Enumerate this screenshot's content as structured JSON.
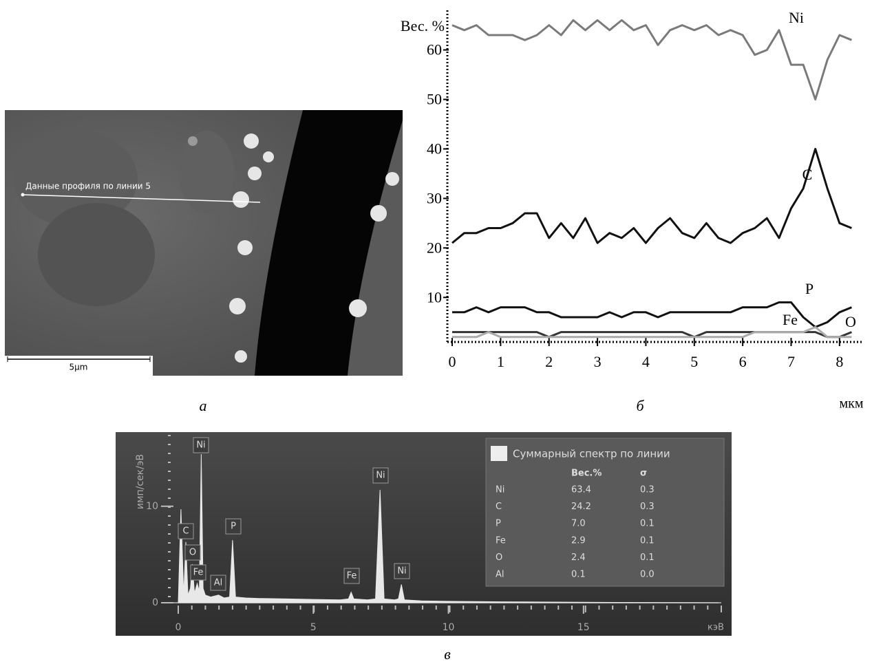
{
  "panel_labels": [
    "а",
    "б",
    "в"
  ],
  "image": {
    "line_label": "Данные профиля по линии 5",
    "scale_bar": "5µm"
  },
  "chart_data": [
    {
      "type": "line",
      "y_label": "Вес. %",
      "x_label": "мкм",
      "x": [
        0,
        0.25,
        0.5,
        0.75,
        1,
        1.25,
        1.5,
        1.75,
        2,
        2.25,
        2.5,
        2.75,
        3,
        3.25,
        3.5,
        3.75,
        4,
        4.25,
        4.5,
        4.75,
        5,
        5.25,
        5.5,
        5.75,
        6,
        6.25,
        6.5,
        6.75,
        7,
        7.25,
        7.5,
        7.75,
        8,
        8.25
      ],
      "xlim": [
        -0.1,
        8.5
      ],
      "ylim": [
        1,
        68
      ],
      "xticks": [
        0,
        1,
        2,
        3,
        4,
        5,
        6,
        7,
        8
      ],
      "yticks": [
        10,
        20,
        30,
        40,
        50,
        60
      ],
      "series": [
        {
          "name": "Ni",
          "color": "#7a7a7a",
          "values": [
            65,
            64,
            65,
            63,
            63,
            63,
            62,
            63,
            65,
            63,
            66,
            64,
            66,
            64,
            66,
            64,
            65,
            61,
            64,
            65,
            64,
            65,
            63,
            64,
            63,
            59,
            60,
            64,
            57,
            57,
            50,
            58,
            63,
            62
          ]
        },
        {
          "name": "C",
          "color": "#111111",
          "values": [
            21,
            23,
            23,
            24,
            24,
            25,
            27,
            27,
            22,
            25,
            22,
            26,
            21,
            23,
            22,
            24,
            21,
            24,
            26,
            23,
            22,
            25,
            22,
            21,
            23,
            24,
            26,
            22,
            28,
            32,
            40,
            32,
            25,
            24
          ]
        },
        {
          "name": "P",
          "color": "#111111",
          "values": [
            7,
            7,
            8,
            7,
            8,
            8,
            8,
            7,
            7,
            6,
            6,
            6,
            6,
            7,
            6,
            7,
            7,
            6,
            7,
            7,
            7,
            7,
            7,
            7,
            8,
            8,
            8,
            9,
            9,
            6,
            4,
            5,
            7,
            8
          ]
        },
        {
          "name": "Fe",
          "color": "#333333",
          "values": [
            3,
            3,
            3,
            3,
            3,
            3,
            3,
            3,
            2,
            3,
            3,
            3,
            3,
            3,
            3,
            3,
            3,
            3,
            3,
            3,
            2,
            3,
            3,
            3,
            3,
            3,
            3,
            3,
            3,
            3,
            3,
            2,
            2,
            3
          ]
        },
        {
          "name": "O",
          "color": "#aaaaaa",
          "values": [
            2,
            2,
            2,
            3,
            2,
            2,
            2,
            2,
            2,
            2,
            2,
            2,
            2,
            2,
            2,
            2,
            2,
            2,
            2,
            2,
            2,
            2,
            2,
            2,
            2,
            3,
            3,
            3,
            3,
            3,
            4,
            2,
            2,
            2
          ]
        }
      ]
    },
    {
      "type": "area",
      "y_label": "имп/сек/эВ",
      "x_label": "кэВ",
      "color": "#e8e8e8",
      "x": [
        0,
        0.1,
        0.2,
        0.28,
        0.36,
        0.45,
        0.52,
        0.6,
        0.7,
        0.78,
        0.85,
        0.92,
        1.0,
        1.2,
        1.49,
        1.7,
        1.9,
        2.01,
        2.12,
        2.5,
        3,
        4,
        5,
        6,
        6.3,
        6.4,
        6.5,
        7,
        7.3,
        7.47,
        7.62,
        8,
        8.15,
        8.26,
        8.37,
        9,
        10,
        12,
        15,
        20
      ],
      "values": [
        0,
        9.7,
        0.8,
        6.3,
        0.8,
        1.5,
        4,
        1,
        2,
        1.2,
        15.4,
        1.5,
        0.8,
        0.6,
        0.8,
        0.5,
        0.6,
        6.5,
        0.6,
        0.5,
        0.45,
        0.4,
        0.35,
        0.3,
        0.4,
        1.1,
        0.4,
        0.3,
        0.4,
        11.7,
        0.4,
        0.3,
        0.4,
        1.9,
        0.3,
        0.2,
        0.15,
        0.1,
        0.05,
        0
      ],
      "xlim": [
        0,
        20.1
      ],
      "ylim": [
        0,
        17.4
      ],
      "xticks": [
        0,
        5,
        10,
        15
      ],
      "yticks": [
        0,
        10
      ],
      "peak_labels": [
        "Ni",
        "C",
        "O",
        "Fe",
        "Al",
        "P",
        "Ni",
        "Fe",
        "Ni"
      ],
      "legend_table": {
        "title": "Суммарный спектр по линии",
        "columns": [
          "",
          "Вес.%",
          "σ"
        ],
        "rows": [
          [
            "Ni",
            "63.4",
            "0.3"
          ],
          [
            "C",
            "24.2",
            "0.3"
          ],
          [
            "P",
            "7.0",
            "0.1"
          ],
          [
            "Fe",
            "2.9",
            "0.1"
          ],
          [
            "O",
            "2.4",
            "0.1"
          ],
          [
            "Al",
            "0.1",
            "0.0"
          ]
        ]
      }
    }
  ]
}
